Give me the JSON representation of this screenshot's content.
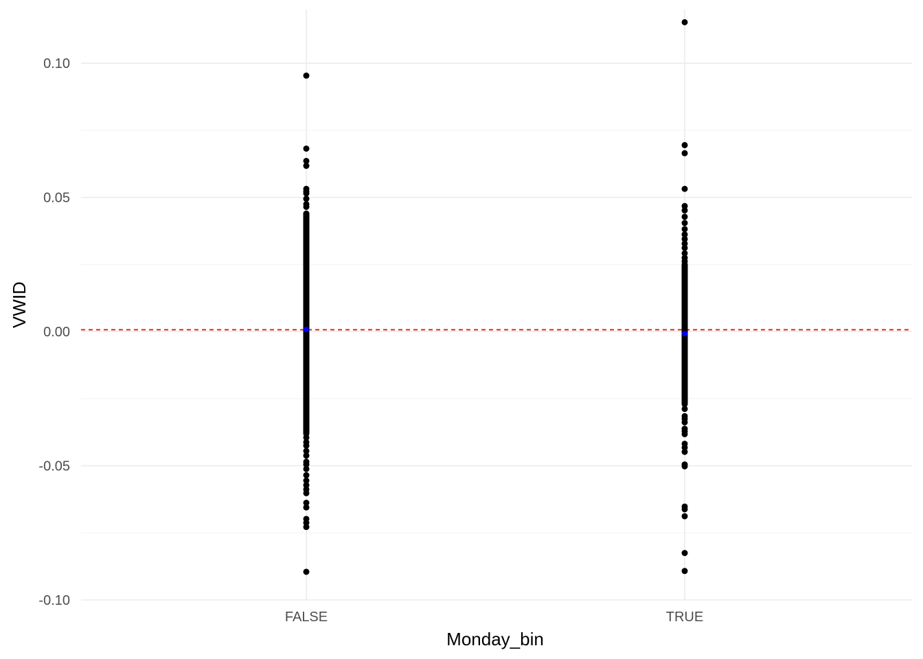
{
  "chart_data": {
    "type": "scatter",
    "title": "",
    "xlabel": "Monday_bin",
    "ylabel": "VWID",
    "categories": [
      "FALSE",
      "TRUE"
    ],
    "ylim": [
      -0.1,
      0.12
    ],
    "y_ticks": [
      -0.1,
      -0.05,
      0.0,
      0.05,
      0.1
    ],
    "y_tick_labels": [
      "-0.10",
      "-0.05",
      "0.00",
      "0.05",
      "0.10"
    ],
    "grid": true,
    "reference_line": {
      "y": 0.0007,
      "style": "dashed",
      "color": "#d62728"
    },
    "point_color": "#000000",
    "mean_color": "#0000ff",
    "series": [
      {
        "category": "FALSE",
        "dense_ranges": [
          [
            -0.038,
            0.044
          ]
        ],
        "points": [
          0.0954,
          0.0682,
          0.0636,
          0.0618,
          0.0532,
          0.0522,
          0.0515,
          0.0495,
          0.0475,
          0.0465,
          -0.0395,
          -0.0412,
          -0.0425,
          -0.0445,
          -0.0462,
          -0.0485,
          -0.0495,
          -0.0512,
          -0.0535,
          -0.0555,
          -0.0572,
          -0.0588,
          -0.0602,
          -0.0638,
          -0.0655,
          -0.0698,
          -0.0712,
          -0.0728,
          -0.0895
        ],
        "mean": 0.0008
      },
      {
        "category": "TRUE",
        "dense_ranges": [
          [
            -0.027,
            0.025
          ]
        ],
        "points": [
          0.1153,
          0.0695,
          0.0665,
          0.0532,
          0.0468,
          0.0452,
          0.0428,
          0.0405,
          0.0382,
          0.0362,
          0.0345,
          0.0328,
          0.0312,
          0.0292,
          0.0275,
          0.0262,
          -0.0288,
          -0.0315,
          -0.0325,
          -0.0338,
          -0.0362,
          -0.0372,
          -0.0382,
          -0.0418,
          -0.0432,
          -0.0448,
          -0.0495,
          -0.0502,
          -0.0652,
          -0.0662,
          -0.0688,
          -0.0825,
          -0.0892
        ],
        "mean": -0.0008
      }
    ]
  }
}
